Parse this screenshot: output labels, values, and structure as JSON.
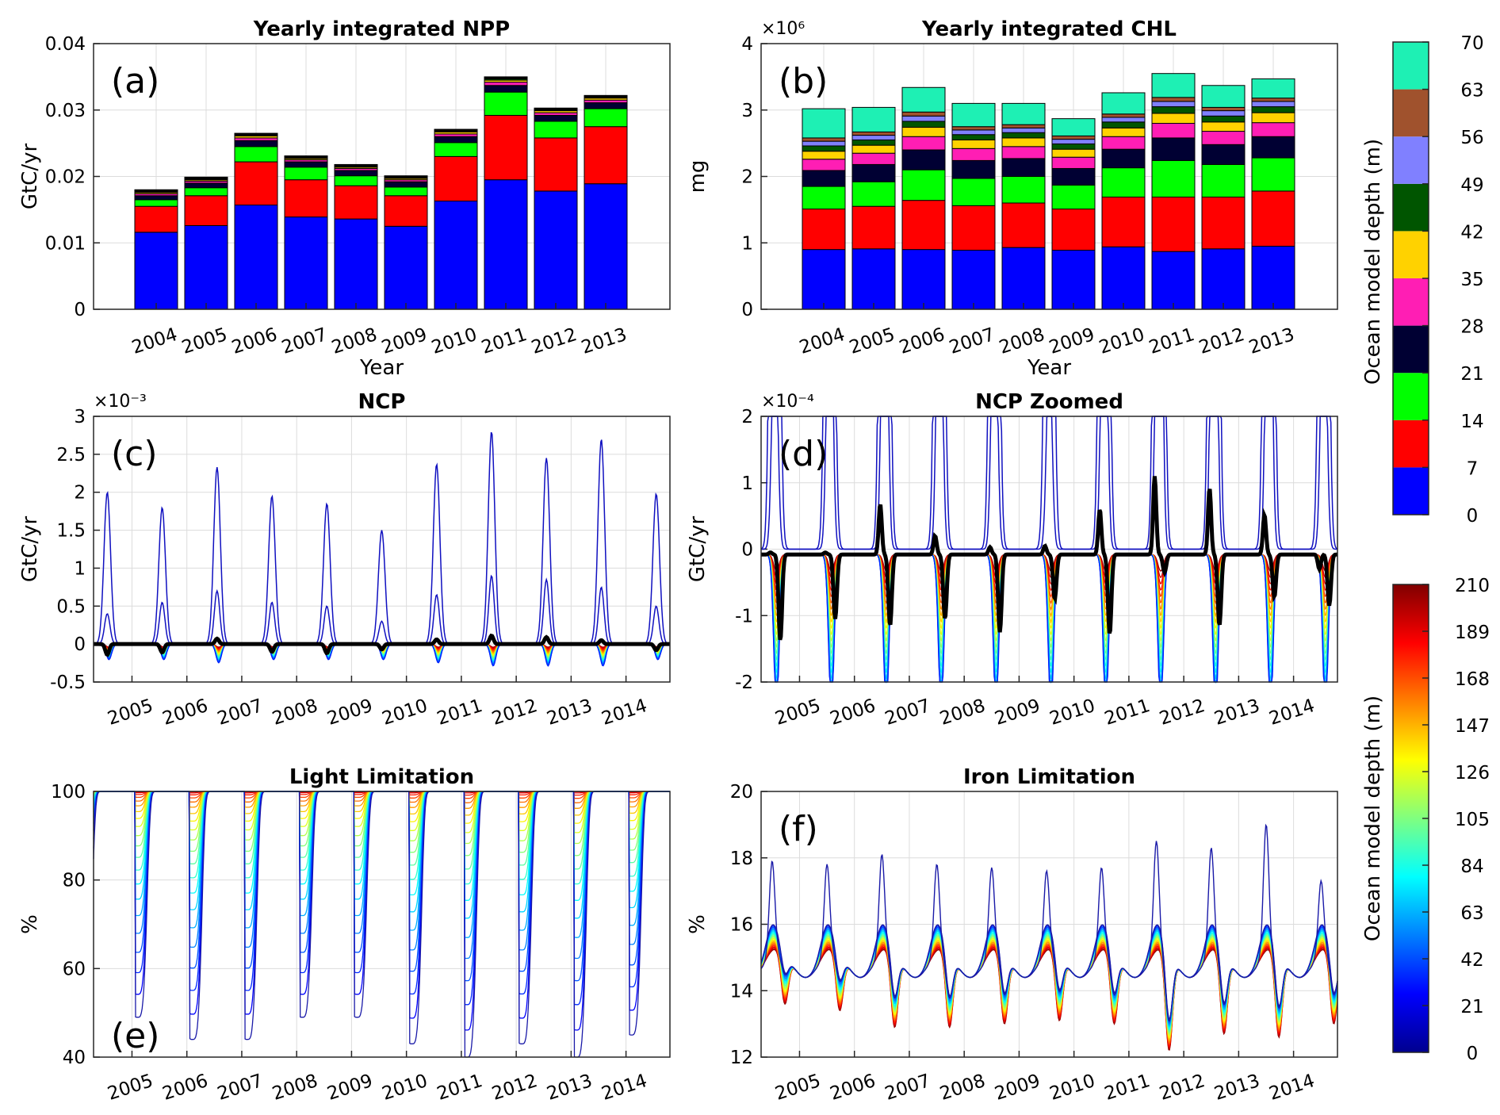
{
  "figure": {
    "colors": {
      "depth_layers": [
        "#0000ff",
        "#ff0000",
        "#00ff00",
        "#000033",
        "#ff1eb4",
        "#ffd200",
        "#005500",
        "#8080ff",
        "#a0522d",
        "#1ef0b4"
      ],
      "axis": "#262626",
      "grid": "#dcdcdc",
      "zero_line": "#000000"
    },
    "colorbar_top": {
      "label": "Ocean model depth (m)",
      "ticks": [
        "0",
        "7",
        "14",
        "21",
        "28",
        "35",
        "42",
        "49",
        "56",
        "63",
        "70"
      ]
    },
    "colorbar_bottom": {
      "label": "Ocean model depth (m)",
      "ticks": [
        "0",
        "21",
        "42",
        "63",
        "84",
        "105",
        "126",
        "147",
        "168",
        "189",
        "210"
      ],
      "colormap": "jet"
    }
  },
  "chart_data": [
    {
      "panel": "(a)",
      "type": "bar",
      "stacked": true,
      "title": "Yearly integrated NPP",
      "xlabel": "Year",
      "ylabel": "GtC/yr",
      "ylim": [
        0,
        0.04
      ],
      "yticks": [
        "0",
        "0.01",
        "0.02",
        "0.03",
        "0.04"
      ],
      "categories": [
        "2004",
        "2005",
        "2006",
        "2007",
        "2008",
        "2009",
        "2010",
        "2011",
        "2012",
        "2013"
      ],
      "series": [
        {
          "depth": 0,
          "values": [
            0.0116,
            0.0126,
            0.0157,
            0.0139,
            0.0136,
            0.0125,
            0.0163,
            0.0195,
            0.0178,
            0.0189
          ]
        },
        {
          "depth": 7,
          "values": [
            0.0039,
            0.0045,
            0.0065,
            0.0056,
            0.005,
            0.0046,
            0.0067,
            0.0097,
            0.008,
            0.0086
          ]
        },
        {
          "depth": 14,
          "values": [
            0.001,
            0.0012,
            0.0023,
            0.0019,
            0.0015,
            0.0013,
            0.0021,
            0.0035,
            0.0025,
            0.0027
          ]
        },
        {
          "depth": 21,
          "values": [
            0.0006,
            0.0007,
            0.0009,
            0.0008,
            0.0008,
            0.0008,
            0.0009,
            0.001,
            0.0009,
            0.0009
          ]
        },
        {
          "depth": 28,
          "values": [
            0.0003,
            0.0003,
            0.0004,
            0.0003,
            0.0003,
            0.0003,
            0.0004,
            0.0005,
            0.0004,
            0.0004
          ]
        },
        {
          "depth": 35,
          "values": [
            0.0002,
            0.0002,
            0.0003,
            0.0002,
            0.0002,
            0.0002,
            0.0003,
            0.0003,
            0.0003,
            0.0003
          ]
        },
        {
          "depth": 42,
          "values": [
            0.0001,
            0.0001,
            0.0001,
            0.0001,
            0.0001,
            0.0001,
            0.0001,
            0.0002,
            0.0001,
            0.0001
          ]
        },
        {
          "depth": 49,
          "values": [
            0.0001,
            0.0001,
            0.0001,
            0.0001,
            0.0001,
            0.0001,
            0.0001,
            0.0001,
            0.0001,
            0.0001
          ]
        },
        {
          "depth": 56,
          "values": [
            0.0001,
            0.0001,
            0.0001,
            0.0001,
            0.0001,
            0.0001,
            0.0001,
            0.0001,
            0.0001,
            0.0001
          ]
        },
        {
          "depth": 63,
          "values": [
            0.0001,
            0.0001,
            0.0001,
            0.0001,
            0.0001,
            0.0001,
            0.0001,
            0.0001,
            0.0001,
            0.0001
          ]
        }
      ]
    },
    {
      "panel": "(b)",
      "type": "bar",
      "stacked": true,
      "title": "Yearly integrated CHL",
      "xlabel": "Year",
      "ylabel": "mg",
      "y_multiplier": "×10⁶",
      "ylim": [
        0,
        4
      ],
      "yticks": [
        "0",
        "1",
        "2",
        "3",
        "4"
      ],
      "categories": [
        "2004",
        "2005",
        "2006",
        "2007",
        "2008",
        "2009",
        "2010",
        "2011",
        "2012",
        "2013"
      ],
      "series": [
        {
          "depth": 0,
          "values": [
            0.9,
            0.91,
            0.9,
            0.89,
            0.93,
            0.89,
            0.94,
            0.87,
            0.91,
            0.95
          ]
        },
        {
          "depth": 7,
          "values": [
            0.61,
            0.64,
            0.74,
            0.67,
            0.67,
            0.62,
            0.75,
            0.82,
            0.78,
            0.83
          ]
        },
        {
          "depth": 14,
          "values": [
            0.34,
            0.37,
            0.46,
            0.41,
            0.4,
            0.36,
            0.44,
            0.55,
            0.49,
            0.5
          ]
        },
        {
          "depth": 21,
          "values": [
            0.24,
            0.26,
            0.3,
            0.27,
            0.27,
            0.25,
            0.28,
            0.34,
            0.3,
            0.32
          ]
        },
        {
          "depth": 28,
          "values": [
            0.17,
            0.17,
            0.2,
            0.18,
            0.18,
            0.17,
            0.19,
            0.22,
            0.2,
            0.21
          ]
        },
        {
          "depth": 35,
          "values": [
            0.12,
            0.12,
            0.14,
            0.13,
            0.13,
            0.12,
            0.13,
            0.15,
            0.14,
            0.15
          ]
        },
        {
          "depth": 42,
          "values": [
            0.08,
            0.08,
            0.09,
            0.08,
            0.08,
            0.08,
            0.09,
            0.1,
            0.09,
            0.09
          ]
        },
        {
          "depth": 49,
          "values": [
            0.07,
            0.07,
            0.08,
            0.07,
            0.07,
            0.07,
            0.07,
            0.08,
            0.08,
            0.08
          ]
        },
        {
          "depth": 56,
          "values": [
            0.05,
            0.05,
            0.06,
            0.05,
            0.05,
            0.05,
            0.05,
            0.06,
            0.05,
            0.05
          ]
        },
        {
          "depth": 63,
          "values": [
            0.44,
            0.37,
            0.37,
            0.35,
            0.32,
            0.26,
            0.32,
            0.36,
            0.33,
            0.29
          ]
        }
      ]
    },
    {
      "panel": "(c)",
      "type": "line",
      "title": "NCP",
      "ylabel": "GtC/yr",
      "y_multiplier": "×10⁻³",
      "ylim": [
        -0.5,
        3
      ],
      "yticks": [
        "-0.5",
        "0",
        "0.5",
        "1",
        "1.5",
        "2",
        "2.5",
        "3"
      ],
      "xlim": [
        2004.3,
        2014.8
      ],
      "xticks": [
        "2005",
        "2006",
        "2007",
        "2008",
        "2009",
        "2010",
        "2011",
        "2012",
        "2013",
        "2014"
      ],
      "peak_times": [
        2004.55,
        2005.55,
        2006.55,
        2007.55,
        2008.55,
        2009.55,
        2010.55,
        2011.55,
        2012.55,
        2013.55,
        2014.55
      ],
      "surface_peaks": [
        2.0,
        1.8,
        2.33,
        1.95,
        1.85,
        1.5,
        2.37,
        2.8,
        2.45,
        2.7,
        1.98
      ],
      "second_layer_peaks": [
        0.4,
        0.55,
        0.7,
        0.55,
        0.5,
        0.3,
        0.65,
        0.9,
        0.85,
        0.75,
        0.5
      ],
      "deep_trough_min": [
        -0.2,
        -0.2,
        -0.25,
        -0.2,
        -0.2,
        -0.2,
        -0.25,
        -0.3,
        -0.3,
        -0.3,
        -0.2
      ],
      "integrated_peaks": [
        -0.14,
        -0.11,
        0.07,
        -0.1,
        -0.12,
        -0.07,
        0.06,
        0.11,
        0.09,
        0.05,
        -0.08
      ]
    },
    {
      "panel": "(d)",
      "type": "line",
      "title": "NCP Zoomed",
      "ylabel": "GtC/yr",
      "y_multiplier": "×10⁻⁴",
      "ylim": [
        -2,
        2
      ],
      "yticks": [
        "-2",
        "-1",
        "0",
        "1",
        "2"
      ],
      "xlim": [
        2004.3,
        2014.8
      ],
      "xticks": [
        "2005",
        "2006",
        "2007",
        "2008",
        "2009",
        "2010",
        "2011",
        "2012",
        "2013",
        "2014"
      ],
      "integrated_curve": {
        "baseline": -0.08,
        "dips": [
          -1.38,
          -1.05,
          -1.15,
          -1.05,
          -1.25,
          -0.75,
          -1.28,
          -0.35,
          -1.15,
          -0.72,
          -0.85
        ],
        "peaks": [
          -0.05,
          -0.05,
          0.68,
          0.2,
          0.03,
          0.05,
          0.6,
          1.1,
          0.92,
          0.52,
          -0.3
        ]
      }
    },
    {
      "panel": "(e)",
      "type": "line",
      "title": "Light Limitation",
      "ylabel": "%",
      "ylim": [
        40,
        100
      ],
      "yticks": [
        "40",
        "60",
        "80",
        "100"
      ],
      "xlim": [
        2004.3,
        2014.8
      ],
      "xticks": [
        "2005",
        "2006",
        "2007",
        "2008",
        "2009",
        "2010",
        "2011",
        "2012",
        "2013",
        "2014"
      ],
      "surface_minima": [
        48,
        49,
        44,
        44,
        49,
        49,
        43,
        40,
        43,
        40,
        45
      ]
    },
    {
      "panel": "(f)",
      "type": "line",
      "title": "Iron Limitation",
      "ylabel": "%",
      "ylim": [
        12,
        20
      ],
      "yticks": [
        "12",
        "14",
        "16",
        "18",
        "20"
      ],
      "xlim": [
        2004.3,
        2014.8
      ],
      "xticks": [
        "2005",
        "2006",
        "2007",
        "2008",
        "2009",
        "2010",
        "2011",
        "2012",
        "2013",
        "2014"
      ],
      "surface_peaks": [
        18.0,
        17.9,
        18.2,
        17.9,
        17.8,
        17.7,
        17.8,
        18.6,
        18.4,
        19.1,
        17.4
      ],
      "deep_minima": [
        13.5,
        13.3,
        12.8,
        12.8,
        12.9,
        13.0,
        12.9,
        12.1,
        12.6,
        12.5,
        12.9
      ]
    }
  ]
}
